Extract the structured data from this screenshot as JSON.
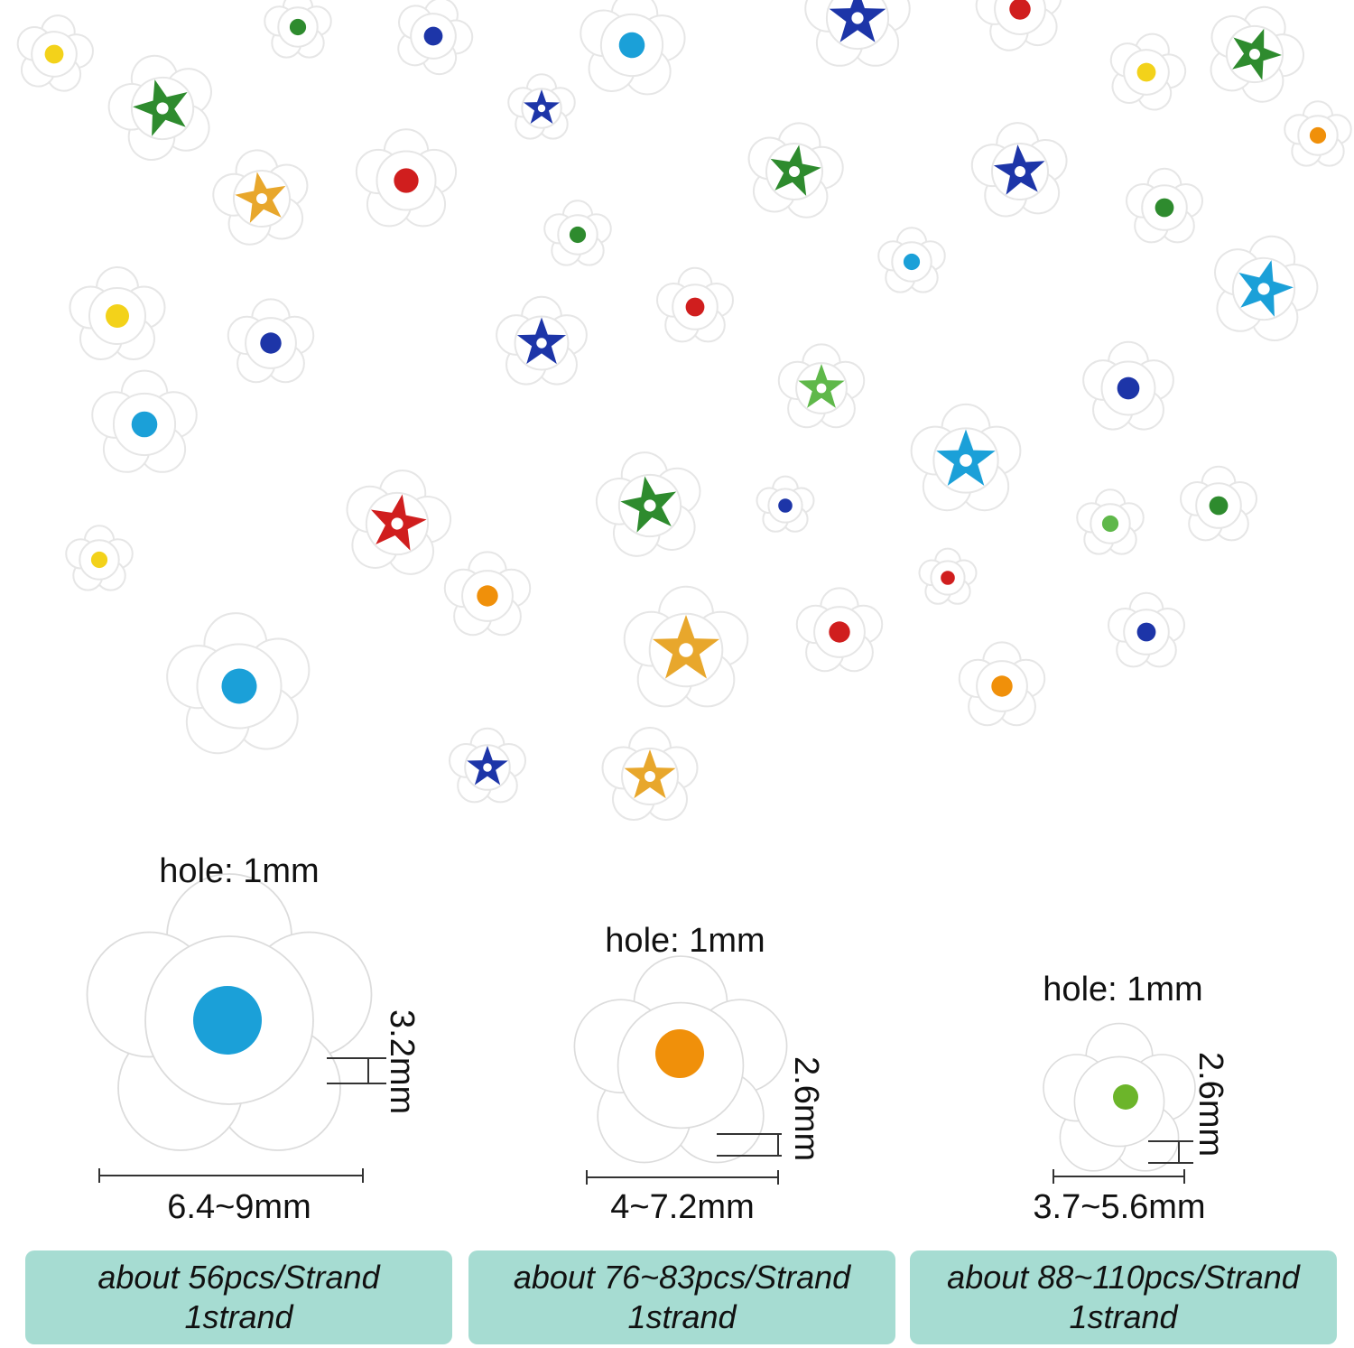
{
  "variants": [
    {
      "hole_label": "hole: 1mm",
      "thickness_label": "3.2mm",
      "width_label": "6.4~9mm",
      "qty_line1": "about 56pcs/Strand",
      "qty_line2": "1strand",
      "center_color": "#1ba0d8"
    },
    {
      "hole_label": "hole: 1mm",
      "thickness_label": "2.6mm",
      "width_label": "4~7.2mm",
      "qty_line1": "about 76~83pcs/Strand",
      "qty_line2": "1strand",
      "center_color": "#f0900a"
    },
    {
      "hole_label": "hole: 1mm",
      "thickness_label": "2.6mm",
      "width_label": "3.7~5.6mm",
      "qty_line1": "about 88~110pcs/Strand",
      "qty_line2": "1strand",
      "center_color": "#6cb52a"
    }
  ],
  "colors": {
    "panel": "#a6dcd2",
    "bead_white": "#ffffff",
    "bead_edge": "#e6e6e6",
    "palette": [
      "#2e8b2e",
      "#1ba0d8",
      "#1d35a8",
      "#d01e1e",
      "#e8a72c",
      "#f3d21a",
      "#5fb84a",
      "#f0900a"
    ]
  }
}
